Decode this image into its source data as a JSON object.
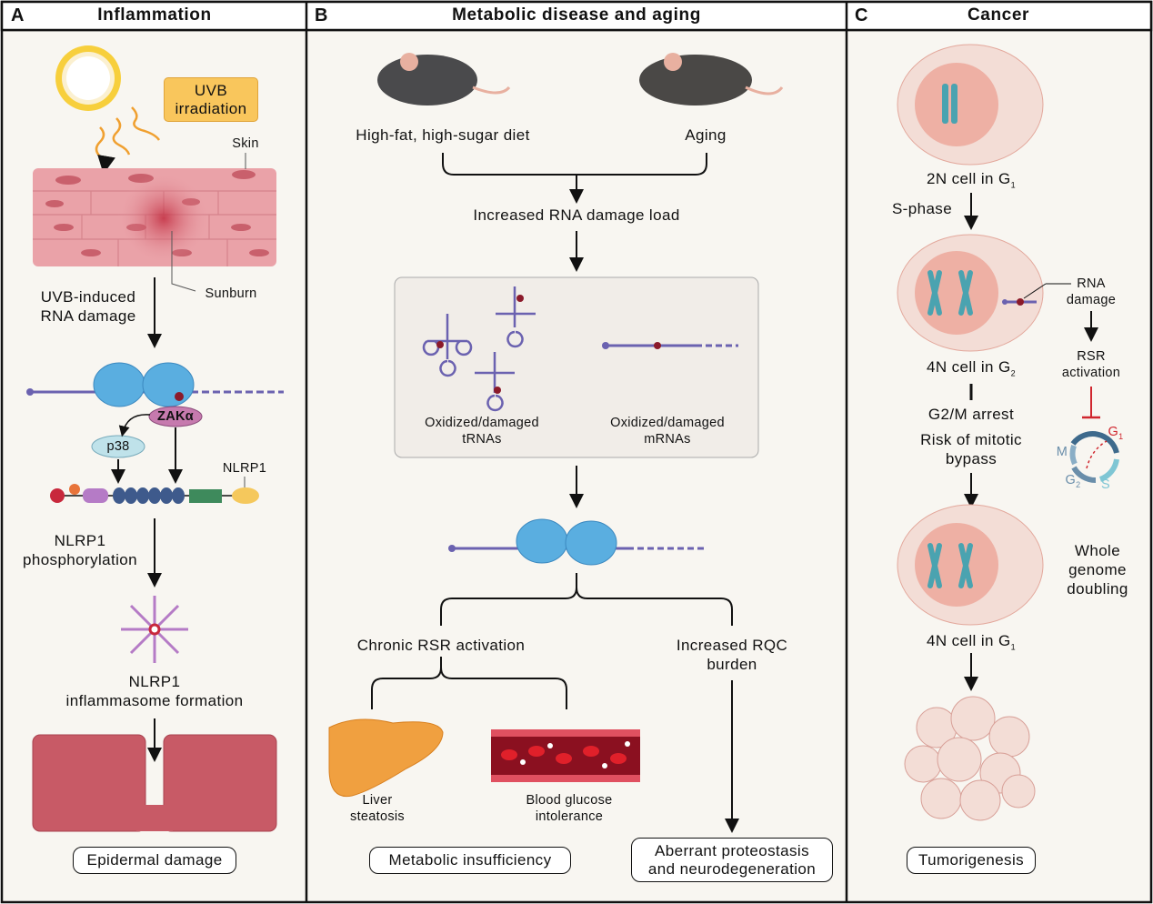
{
  "panels": {
    "a": {
      "letter": "A",
      "title": "Inflammation",
      "uvb_label": "UVB\nirradiation",
      "skin": "Skin",
      "sunburn": "Sunburn",
      "uvb_damage": "UVB-induced\nRNA damage",
      "zak": "ZAKα",
      "p38": "p38",
      "nlrp1": "NLRP1",
      "phosphorylation": "NLRP1\nphosphorylation",
      "inflammasome": "NLRP1\ninflammasome formation",
      "outcome": "Epidermal damage"
    },
    "b": {
      "letter": "B",
      "title": "Metabolic disease and aging",
      "diet": "High-fat, high-sugar diet",
      "aging": "Aging",
      "load": "Increased RNA damage load",
      "trnas": "Oxidized/damaged\ntRNAs",
      "mrnas": "Oxidized/damaged\nmRNAs",
      "rsr": "Chronic RSR activation",
      "rqc": "Increased RQC\nburden",
      "liver": "Liver\nsteatosis",
      "blood": "Blood glucose\nintolerance",
      "outcome_metabolic": "Metabolic insufficiency",
      "outcome_proteostasis": "Aberrant proteostasis\nand neurodegeneration"
    },
    "c": {
      "letter": "C",
      "title": "Cancer",
      "cell1": "2N cell in G",
      "cell1_sub": "1",
      "sphase": "S-phase",
      "rna_damage": "RNA\ndamage",
      "rsr_activation": "RSR\nactivation",
      "cell2": "4N cell in G",
      "cell2_sub": "2",
      "arrest": "G2/M arrest",
      "bypass": "Risk of mitotic\nbypass",
      "wgd": "Whole\ngenome\ndoubling",
      "cell3": "4N cell in G",
      "cell3_sub": "1",
      "cycle": {
        "g1": "G",
        "g1_sub": "1",
        "m": "M",
        "g2": "G",
        "g2_sub": "2",
        "s": "S"
      },
      "outcome": "Tumorigenesis"
    }
  },
  "colors": {
    "background": "#f8f6f1",
    "ribosome": "#5aaee0",
    "rna": "#6b62b0",
    "damage": "#8b1a2a",
    "inhibit": "#d0262e",
    "cell": "#f3ddd6",
    "nucleus": "#eeb0a4",
    "chromosome": "#4aa3b0",
    "uvb_box": "#f9c65c"
  }
}
